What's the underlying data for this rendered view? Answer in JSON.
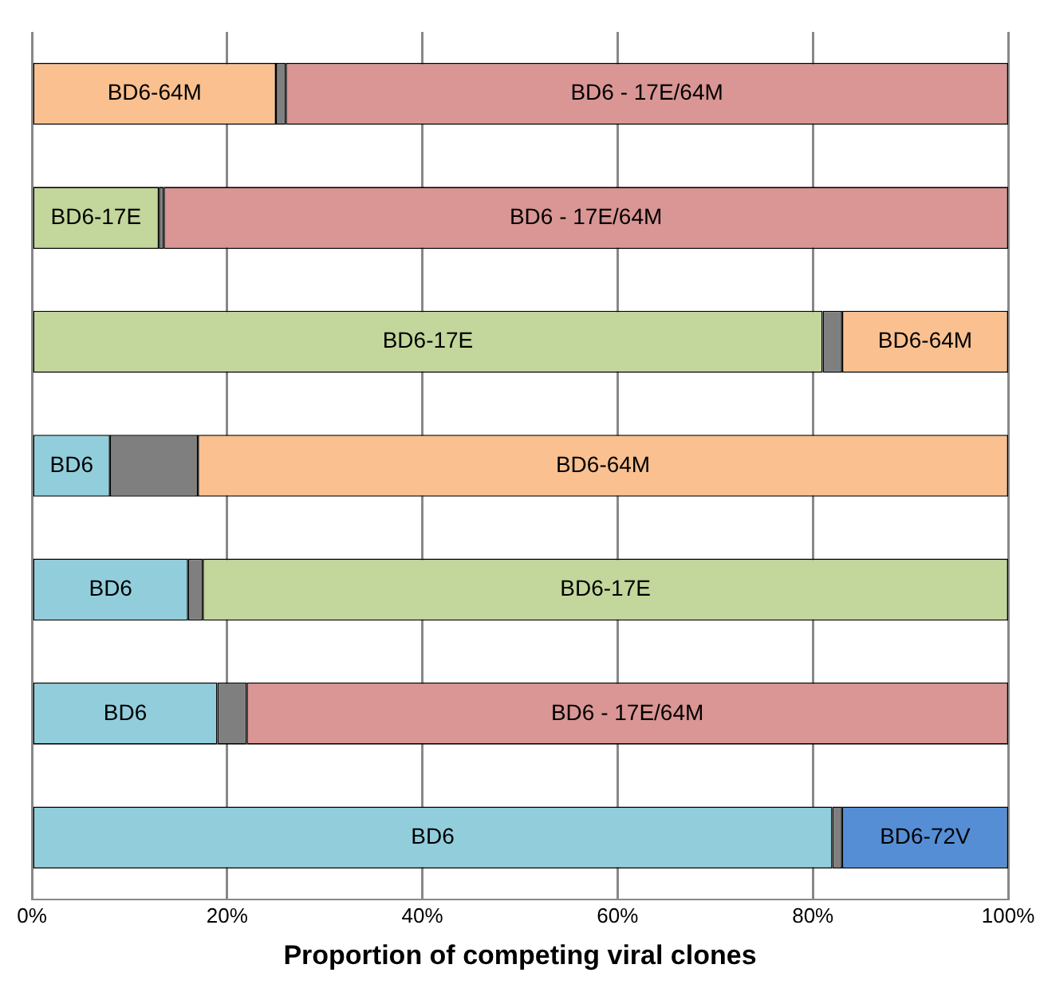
{
  "chart_data": {
    "type": "bar",
    "orientation": "horizontal",
    "stacked": true,
    "xlabel": "Proportion of competing viral clones",
    "categories": [
      null,
      null,
      null,
      null,
      null,
      null,
      null
    ],
    "series": [
      {
        "values": [
          25,
          13,
          81,
          8,
          16,
          19,
          82
        ],
        "colors": [
          "#fac090",
          "#c3d69b",
          "#c3d69b",
          "#92cddc",
          "#92cddc",
          "#92cddc",
          "#92cddc"
        ],
        "value_labels": [
          "BD6-64M",
          "BD6-17E",
          "BD6-17E",
          "BD6",
          "BD6",
          "BD6",
          "BD6"
        ]
      },
      {
        "values": [
          1,
          0.5,
          2,
          9,
          1.5,
          3,
          1
        ],
        "colors": [
          "#7f7f7f",
          "#7f7f7f",
          "#7f7f7f",
          "#7f7f7f",
          "#7f7f7f",
          "#7f7f7f",
          "#7f7f7f"
        ]
      },
      {
        "values": [
          74,
          86.5,
          17,
          83,
          82.5,
          78,
          17
        ],
        "colors": [
          "#d99694",
          "#d99694",
          "#fac090",
          "#fac090",
          "#c3d69b",
          "#d99694",
          "#558ed5"
        ],
        "value_labels": [
          "BD6 - 17E/64M",
          "BD6 - 17E/64M",
          "BD6-64M",
          "BD6-64M",
          "BD6-17E",
          "BD6 - 17E/64M",
          "BD6-72V"
        ]
      }
    ],
    "xlim": [
      0,
      100
    ],
    "xticks": [
      {
        "value": 0,
        "label": "0%"
      },
      {
        "value": 20,
        "label": "20%"
      },
      {
        "value": 40,
        "label": "40%"
      },
      {
        "value": 60,
        "label": "60%"
      },
      {
        "value": 80,
        "label": "80%"
      },
      {
        "value": 100,
        "label": "100%"
      }
    ],
    "grid": "x",
    "legend": false,
    "tick_labels": "x"
  }
}
